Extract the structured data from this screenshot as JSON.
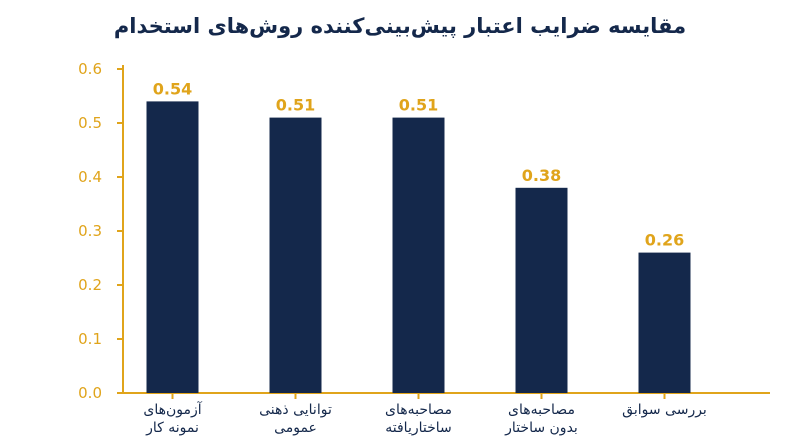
{
  "colors": {
    "bar": "#14284b",
    "axis": "#e0a41b",
    "title": "#14284b",
    "category_text": "#14284b"
  },
  "chart_data": {
    "type": "bar",
    "title": "مقایسه ضرایب اعتبار پیش‌بینی‌کننده روش‌های استخدام",
    "categories": [
      [
        "آزمون‌های",
        "نمونه کار"
      ],
      [
        "توانایی ذهنی",
        "عمومی"
      ],
      [
        "مصاحبه‌های",
        "ساختاریافته"
      ],
      [
        "مصاحبه‌های",
        "بدون ساختار"
      ],
      [
        "بررسی سوابق"
      ]
    ],
    "values": [
      0.54,
      0.51,
      0.51,
      0.38,
      0.26
    ],
    "value_labels": [
      "0.54",
      "0.51",
      "0.51",
      "0.38",
      "0.26"
    ],
    "yticks": [
      "0.0",
      "0.1",
      "0.2",
      "0.3",
      "0.4",
      "0.5",
      "0.6"
    ],
    "ylim": [
      0,
      0.6
    ],
    "xlabel": "",
    "ylabel": "",
    "grid": false,
    "legend": "none"
  }
}
